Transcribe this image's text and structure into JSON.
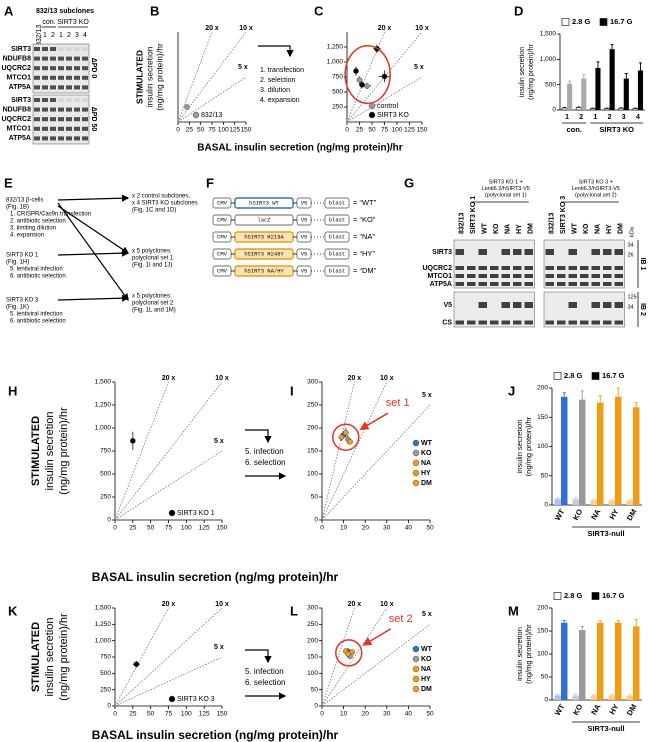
{
  "panel_a": {
    "panel": "A",
    "header": "832/13 subclones",
    "parent_lane": "832/13",
    "groups": [
      {
        "name": "con.",
        "lanes": [
          "1",
          "2"
        ]
      },
      {
        "name": "SIRT3 KO",
        "lanes": [
          "1",
          "2",
          "3",
          "4"
        ]
      }
    ],
    "blocks": [
      {
        "label": "ΔPD 0",
        "rows": [
          "SIRT3",
          "NDUFB8",
          "UQCRC2",
          "MTCO1",
          "ATP5A"
        ]
      },
      {
        "label": "ΔPD 50",
        "rows": [
          "SIRT3",
          "NDUFB8",
          "UQCRC2",
          "MTCO1",
          "ATP5A"
        ]
      }
    ]
  },
  "transition_bc": [
    "1. transfection",
    "2. selection",
    "3. dilution",
    "4. expansion"
  ],
  "transition_hi": [
    "5. infection",
    "6. selection"
  ],
  "transition_kl": [
    "5. infection",
    "6. selection"
  ],
  "panel_e": {
    "panel": "E",
    "steps": [
      {
        "source": [
          "832/13 β-cells",
          "(Fig. 1B)"
        ],
        "actions": [
          "1. CRISPR/Cas9n transfection",
          "2. antibiotic selection",
          "3. limiting dilution",
          "4. expansion"
        ],
        "results": [
          "x 2 control subclones,",
          "x 4 SIRT3 KO subclones",
          "(Fig. 1C and 1D)"
        ]
      },
      {
        "source": [
          "SIRT3 KO 1",
          "(Fig. 1H)"
        ],
        "actions": [
          "5. lentiviral infection",
          "6. antibiotic selection"
        ],
        "results": [
          "x 5 polyclones:",
          "polyclonal set 1",
          "(Fig. 1I and 1J)"
        ]
      },
      {
        "source": [
          "SIRT3 KO 3",
          "(Fig. 1K)"
        ],
        "actions": [
          "5. lentiviral infection",
          "6. antibiotic selection"
        ],
        "results": [
          "x 5 polyclones:",
          "polyclonal set 2",
          "(Fig. 1L and 1M)"
        ]
      }
    ]
  },
  "panel_f": {
    "panel": "F",
    "constructs": [
      {
        "parts": [
          "CMV",
          "hSIRT3 WT",
          "V5",
          "blast"
        ],
        "label": "= “WT”",
        "color": "#2f6fd6"
      },
      {
        "parts": [
          "CMV",
          "lacZ",
          "V5",
          "blast"
        ],
        "label": "= “KO”",
        "color": "#999999"
      },
      {
        "parts": [
          "CMV",
          "hSIRT3 H219A",
          "V5",
          "blast"
        ],
        "label": "= “NA”",
        "color": "#f39c12"
      },
      {
        "parts": [
          "CMV",
          "hSIRT3 H248Y",
          "V5",
          "blast"
        ],
        "label": "= “HY”",
        "color": "#f39c12"
      },
      {
        "parts": [
          "CMV",
          "hSIRT3 NA/HY",
          "V5",
          "blast"
        ],
        "label": "= “DM”",
        "color": "#f39c12"
      }
    ]
  },
  "panel_g": {
    "panel": "G",
    "unit": "kDa",
    "blots": [
      {
        "header": [
          "SIRT3 KO 1 +",
          "Lenti6.3/hSIRT3-V5",
          "(polyclonal set 1)"
        ],
        "lanes": [
          "832/13",
          "SIRT3 KO 1",
          "WT",
          "KO",
          "NA",
          "HY",
          "DM"
        ]
      },
      {
        "header": [
          "SIRT3 KO 3 +",
          "Lenti6.3/hSIRT3-V5",
          "(polyclonal set 2)"
        ],
        "lanes": [
          "832/13",
          "SIRT3 KO 3",
          "WT",
          "KO",
          "NA",
          "HY",
          "DM"
        ]
      }
    ],
    "blocks": [
      {
        "label": "IB 1",
        "rows": [
          "SIRT3",
          "UQCRC2",
          "MTCO1",
          "ATP5A"
        ],
        "markers": [
          34,
          26
        ]
      },
      {
        "label": "IB 2",
        "rows": [
          "V5",
          "CS"
        ],
        "markers": [
          125,
          34
        ]
      }
    ]
  },
  "chart_data": [
    {
      "type": "scatter",
      "panel": "B",
      "ylabel": [
        "STIMULATED",
        "insulin secretion",
        "(ng/mg protein)/hr"
      ],
      "xlabel": "BASAL insulin secretion (ng/mg protein)/hr",
      "xlim": [
        0,
        150
      ],
      "xticks": [
        0,
        25,
        50,
        75,
        100,
        125,
        150
      ],
      "ylim": [
        0,
        1500
      ],
      "ratio_lines": [
        {
          "value": 20,
          "label": "20 x"
        },
        {
          "value": 10,
          "label": "10 x"
        },
        {
          "value": 5,
          "label": "5 x"
        }
      ],
      "legend": "lower right",
      "series": [
        {
          "name": "832/13",
          "color": "#9a9a9a",
          "x": [
            20
          ],
          "y": [
            250
          ],
          "x_err": [
            6
          ],
          "y_err": [
            40
          ]
        }
      ]
    },
    {
      "type": "scatter",
      "panel": "C",
      "xlim": [
        0,
        150
      ],
      "xticks": [
        0,
        25,
        50,
        75,
        100,
        125,
        150
      ],
      "ylim": [
        0,
        1500
      ],
      "yticks": [
        250,
        500,
        750,
        {
          "value": 1000,
          "label": "1,000"
        },
        {
          "value": 1250,
          "label": "1,250"
        }
      ],
      "ratio_lines": [
        {
          "value": 20,
          "label": "20 x"
        },
        {
          "value": 10,
          "label": "10 x"
        },
        {
          "value": 5,
          "label": "5 x"
        }
      ],
      "legend": "lower right",
      "highlight": true,
      "series": [
        {
          "name": "control",
          "color": "#9a9a9a",
          "x": [
            25,
            40
          ],
          "y": [
            700,
            600
          ],
          "x_err": [
            6,
            8
          ],
          "y_err": [
            60,
            50
          ]
        },
        {
          "name": "SIRT3 KO",
          "color": "#000000",
          "x": [
            18,
            30,
            60,
            75
          ],
          "y": [
            850,
            620,
            1220,
            760
          ],
          "x_err": [
            5,
            6,
            8,
            12
          ],
          "y_err": [
            80,
            60,
            70,
            100
          ]
        }
      ]
    },
    {
      "type": "bar",
      "panel": "D",
      "ylabel": [
        "insulin secretion",
        "(ng/mg protein)/hr"
      ],
      "ylim": [
        0,
        1500
      ],
      "yticks": [
        0,
        500,
        {
          "value": 1000,
          "label": "1,000"
        },
        {
          "value": 1500,
          "label": "1,500"
        }
      ],
      "groups": [
        {
          "name": "con.",
          "categories": [
            "1",
            "2"
          ]
        },
        {
          "name": "SIRT3 KO",
          "categories": [
            "1",
            "2",
            "3",
            "4"
          ]
        }
      ],
      "series": [
        {
          "name": "2.8 G",
          "color": "#ffffff",
          "values": [
            40,
            50,
            30,
            30,
            35,
            30
          ],
          "errors": [
            10,
            10,
            8,
            8,
            10,
            8
          ]
        },
        {
          "name": "16.7 G",
          "color": "#000000",
          "colors": [
            "#aaaaaa",
            "#aaaaaa",
            "#000000",
            "#000000",
            "#000000",
            "#000000"
          ],
          "values": [
            520,
            620,
            830,
            1200,
            620,
            780
          ],
          "errors": [
            50,
            80,
            120,
            90,
            100,
            150
          ]
        }
      ]
    },
    {
      "type": "scatter",
      "panel": "H",
      "ylabel": [
        "STIMULATED",
        "insulin secretion",
        "(ng/mg protein)/hr"
      ],
      "xlabel": "BASAL insulin secretion (ng/mg protein)/hr",
      "xlim": [
        0,
        150
      ],
      "xticks": [
        0,
        25,
        50,
        75,
        100,
        125,
        150
      ],
      "ylim": [
        0,
        1500
      ],
      "yticks": [
        0,
        250,
        500,
        750,
        {
          "value": 1000,
          "label": "1,000"
        },
        {
          "value": 1250,
          "label": "1,250"
        },
        {
          "value": 1500,
          "label": "1,500"
        }
      ],
      "ratio_lines": [
        {
          "value": 20,
          "label": "20 x"
        },
        {
          "value": 10,
          "label": "10 x"
        },
        {
          "value": 5,
          "label": "5 x"
        }
      ],
      "legend": "lower right",
      "series": [
        {
          "name": "SIRT3 KO 1",
          "color": "#000000",
          "x": [
            25
          ],
          "y": [
            860
          ],
          "x_err": [
            3
          ],
          "y_err": [
            100
          ]
        }
      ]
    },
    {
      "type": "scatter",
      "panel": "I",
      "xlim": [
        0,
        50
      ],
      "xticks": [
        0,
        10,
        20,
        30,
        40,
        50
      ],
      "ylim": [
        0,
        300
      ],
      "yticks": [
        0,
        50,
        100,
        150,
        200,
        250,
        300
      ],
      "ratio_lines": [
        {
          "value": 20,
          "label": "20 x"
        },
        {
          "value": 10,
          "label": "10 x"
        },
        {
          "value": 5,
          "label": "5 x"
        }
      ],
      "legend": "right",
      "highlight": true,
      "annotation": "set 1",
      "series": [
        {
          "name": "WT",
          "color": "#2f6fd6",
          "x": [
            10
          ],
          "y": [
            185
          ],
          "x_err": [
            1
          ],
          "y_err": [
            8
          ]
        },
        {
          "name": "KO",
          "color": "#9a9a9a",
          "x": [
            12
          ],
          "y": [
            175
          ],
          "x_err": [
            1
          ],
          "y_err": [
            10
          ]
        },
        {
          "name": "NA",
          "color": "#f39c12",
          "x": [
            9
          ],
          "y": [
            180
          ],
          "x_err": [
            1
          ],
          "y_err": [
            8
          ]
        },
        {
          "name": "HY",
          "color": "#f39c12",
          "x": [
            11
          ],
          "y": [
            190
          ],
          "x_err": [
            1
          ],
          "y_err": [
            10
          ]
        },
        {
          "name": "DM",
          "color": "#f39c12",
          "x": [
            13
          ],
          "y": [
            170
          ],
          "x_err": [
            1
          ],
          "y_err": [
            6
          ]
        }
      ]
    },
    {
      "type": "bar",
      "panel": "J",
      "ylabel": [
        "insulin secretion",
        "(ng/mg protein)/hr"
      ],
      "ylim": [
        0,
        200
      ],
      "yticks": [
        0,
        50,
        100,
        150,
        200
      ],
      "groups": [
        {
          "categories": [
            "WT"
          ]
        },
        {
          "name": "SIRT3-null",
          "categories": [
            "KO",
            "NA",
            "HY",
            "DM"
          ]
        }
      ],
      "series": [
        {
          "name": "2.8 G",
          "color": "#ffffff",
          "colors": [
            "#a9c3f0",
            "#cccccc",
            "#f8d08a",
            "#f8d08a",
            "#f8d08a"
          ],
          "values": [
            10,
            10,
            8,
            8,
            8
          ],
          "errors": [
            2,
            3,
            2,
            2,
            2
          ]
        },
        {
          "name": "16.7 G",
          "color": "#000000",
          "colors": [
            "#2f6fd6",
            "#9a9a9a",
            "#f39c12",
            "#f39c12",
            "#f39c12"
          ],
          "values": [
            185,
            180,
            175,
            185,
            167
          ],
          "errors": [
            7,
            15,
            12,
            15,
            8
          ]
        }
      ]
    },
    {
      "type": "scatter",
      "panel": "K",
      "ylabel": [
        "STIMULATED",
        "insulin secretion",
        "(ng/mg protein)/hr"
      ],
      "xlabel": "BASAL insulin secretion (ng/mg protein)/hr",
      "xlim": [
        0,
        150
      ],
      "xticks": [
        0,
        25,
        50,
        75,
        100,
        125,
        150
      ],
      "ylim": [
        0,
        1500
      ],
      "yticks": [
        0,
        250,
        500,
        750,
        {
          "value": 1000,
          "label": "1,000"
        },
        {
          "value": 1250,
          "label": "1,250"
        },
        {
          "value": 1500,
          "label": "1,500"
        }
      ],
      "ratio_lines": [
        {
          "value": 20,
          "label": "20 x"
        },
        {
          "value": 10,
          "label": "10 x"
        },
        {
          "value": 5,
          "label": "5 x"
        }
      ],
      "legend": "lower right",
      "series": [
        {
          "name": "SIRT3 KO 3",
          "color": "#000000",
          "x": [
            30
          ],
          "y": [
            640
          ],
          "x_err": [
            5
          ],
          "y_err": [
            50
          ]
        }
      ]
    },
    {
      "type": "scatter",
      "panel": "L",
      "xlim": [
        0,
        50
      ],
      "xticks": [
        0,
        10,
        20,
        30,
        40,
        50
      ],
      "ylim": [
        0,
        300
      ],
      "yticks": [
        0,
        50,
        100,
        150,
        200,
        250,
        300
      ],
      "ratio_lines": [
        {
          "value": 20,
          "label": "20 x"
        },
        {
          "value": 10,
          "label": "10 x"
        },
        {
          "value": 5,
          "label": "5 x"
        }
      ],
      "legend": "right",
      "highlight": true,
      "annotation": "set 2",
      "series": [
        {
          "name": "WT",
          "color": "#2f6fd6",
          "x": [
            12
          ],
          "y": [
            168
          ],
          "x_err": [
            1
          ],
          "y_err": [
            5
          ]
        },
        {
          "name": "KO",
          "color": "#9a9a9a",
          "x": [
            13
          ],
          "y": [
            152
          ],
          "x_err": [
            1
          ],
          "y_err": [
            8
          ]
        },
        {
          "name": "NA",
          "color": "#f39c12",
          "x": [
            11
          ],
          "y": [
            168
          ],
          "x_err": [
            1
          ],
          "y_err": [
            4
          ]
        },
        {
          "name": "HY",
          "color": "#f39c12",
          "x": [
            14
          ],
          "y": [
            165
          ],
          "x_err": [
            1
          ],
          "y_err": [
            5
          ]
        },
        {
          "name": "DM",
          "color": "#f39c12",
          "x": [
            12
          ],
          "y": [
            160
          ],
          "x_err": [
            1
          ],
          "y_err": [
            10
          ]
        }
      ]
    },
    {
      "type": "bar",
      "panel": "M",
      "ylabel": [
        "insulin secretion",
        "(ng/mg protein)/hr"
      ],
      "ylim": [
        0,
        200
      ],
      "yticks": [
        0,
        50,
        100,
        150,
        200
      ],
      "groups": [
        {
          "categories": [
            "WT"
          ]
        },
        {
          "name": "SIRT3-null",
          "categories": [
            "KO",
            "NA",
            "HY",
            "DM"
          ]
        }
      ],
      "series": [
        {
          "name": "2.8 G",
          "color": "#ffffff",
          "colors": [
            "#a9c3f0",
            "#cccccc",
            "#f8d08a",
            "#f8d08a",
            "#f8d08a"
          ],
          "values": [
            10,
            10,
            10,
            10,
            10
          ],
          "errors": [
            2,
            3,
            2,
            2,
            2
          ]
        },
        {
          "name": "16.7 G",
          "color": "#000000",
          "colors": [
            "#2f6fd6",
            "#9a9a9a",
            "#f39c12",
            "#f39c12",
            "#f39c12"
          ],
          "values": [
            168,
            152,
            168,
            168,
            160
          ],
          "errors": [
            5,
            8,
            4,
            5,
            15
          ]
        }
      ]
    }
  ]
}
